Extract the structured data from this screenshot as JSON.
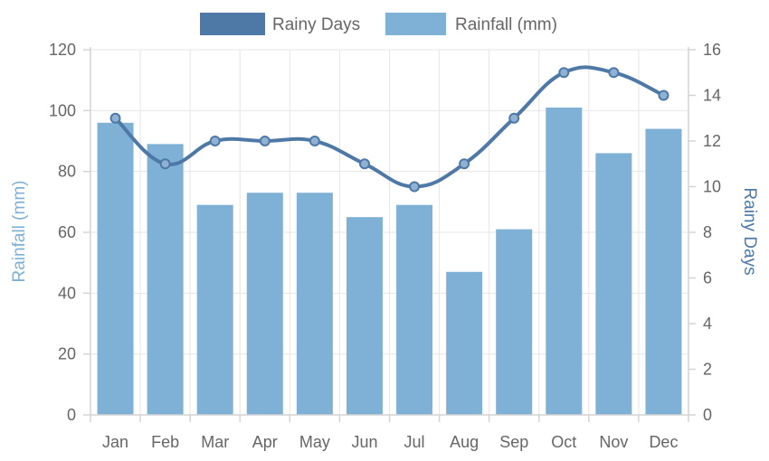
{
  "chart_data": {
    "type": "bar+line",
    "categories": [
      "Jan",
      "Feb",
      "Mar",
      "Apr",
      "May",
      "Jun",
      "Jul",
      "Aug",
      "Sep",
      "Oct",
      "Nov",
      "Dec"
    ],
    "series": [
      {
        "name": "Rainy Days",
        "type": "line",
        "axis": "right",
        "color": "#4e79a7",
        "values": [
          13,
          11,
          12,
          12,
          12,
          11,
          10,
          11,
          13,
          15,
          15,
          14
        ]
      },
      {
        "name": "Rainfall (mm)",
        "type": "bar",
        "axis": "left",
        "color": "#7fb1d6",
        "values": [
          96,
          89,
          69,
          73,
          73,
          65,
          69,
          47,
          61,
          101,
          86,
          94
        ]
      }
    ],
    "y_left": {
      "label": "Rainfall (mm)",
      "min": 0,
      "max": 120,
      "step": 20,
      "color": "#7fb1d6"
    },
    "y_right": {
      "label": "Rainy Days",
      "min": 0,
      "max": 16,
      "step": 2,
      "color": "#4e79a7"
    },
    "grid": true,
    "legend_position": "top-center"
  }
}
